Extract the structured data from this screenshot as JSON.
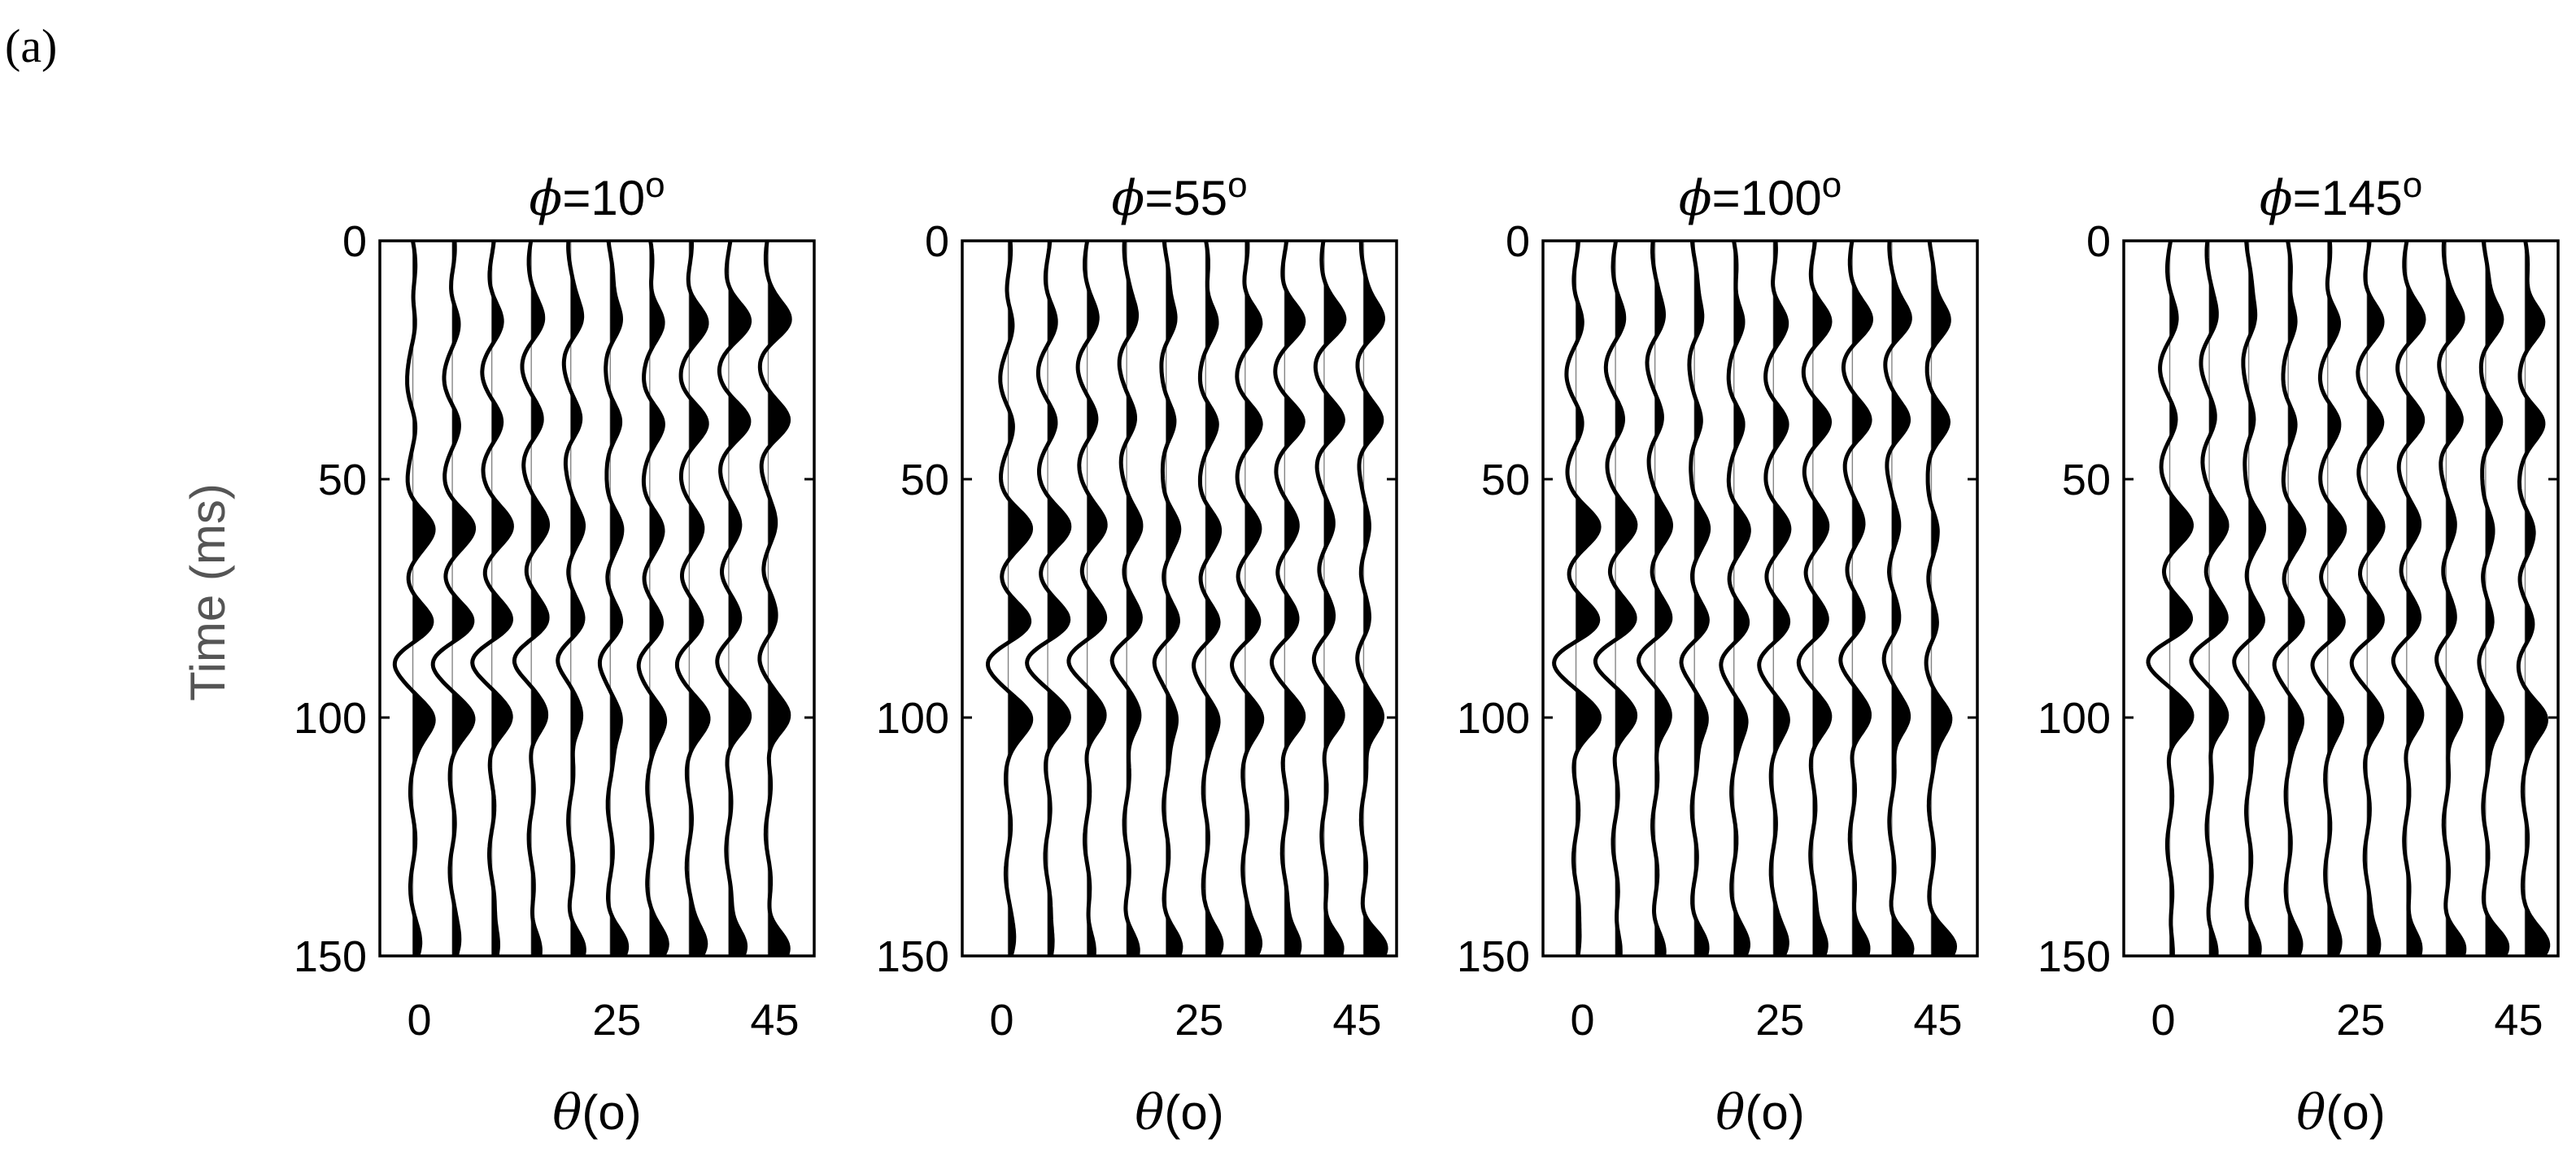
{
  "figure": {
    "panel_label": "(a)"
  },
  "chart_data": {
    "type": "line",
    "plot_style": "seismic wiggle traces with positive fill",
    "ylabel": "Time (ms)",
    "y_axis_reversed": true,
    "ylim": [
      0,
      150
    ],
    "yticks": [
      "0",
      "50",
      "100",
      "150"
    ],
    "xticks_values": [
      0,
      25,
      45
    ],
    "xticks": [
      "0",
      "25",
      "45"
    ],
    "xlabel_symbol": "θ",
    "xlabel_unit": "(o)",
    "xlim": [
      -5,
      50
    ],
    "trace_offsets_deg": [
      0,
      5,
      10,
      15,
      20,
      25,
      30,
      35,
      40,
      45
    ],
    "wavelet_events_ms": [
      {
        "time": 17,
        "polarity": "positive",
        "amplitude_trend": "increases with angle"
      },
      {
        "time": 38,
        "polarity": "positive",
        "amplitude_trend": "increases with angle"
      },
      {
        "time": 60,
        "polarity": "positive",
        "amplitude_trend": "decreases with angle"
      },
      {
        "time": 80,
        "polarity": "positive",
        "amplitude_trend": "decreases with angle"
      },
      {
        "time": 88,
        "polarity": "negative",
        "amplitude_trend": "decreases with angle"
      },
      {
        "time": 100,
        "polarity": "positive",
        "amplitude_trend": "strongest at near and far angles"
      },
      {
        "time": 148,
        "polarity": "positive",
        "amplitude_trend": "increases with angle"
      }
    ],
    "panels": [
      {
        "phi_symbol": "ϕ",
        "title_value": "=10",
        "title_degree": "o"
      },
      {
        "phi_symbol": "ϕ",
        "title_value": "=55",
        "title_degree": "o"
      },
      {
        "phi_symbol": "ϕ",
        "title_value": "=100",
        "title_degree": "o"
      },
      {
        "phi_symbol": "ϕ",
        "title_value": "=145",
        "title_degree": "o"
      }
    ]
  }
}
